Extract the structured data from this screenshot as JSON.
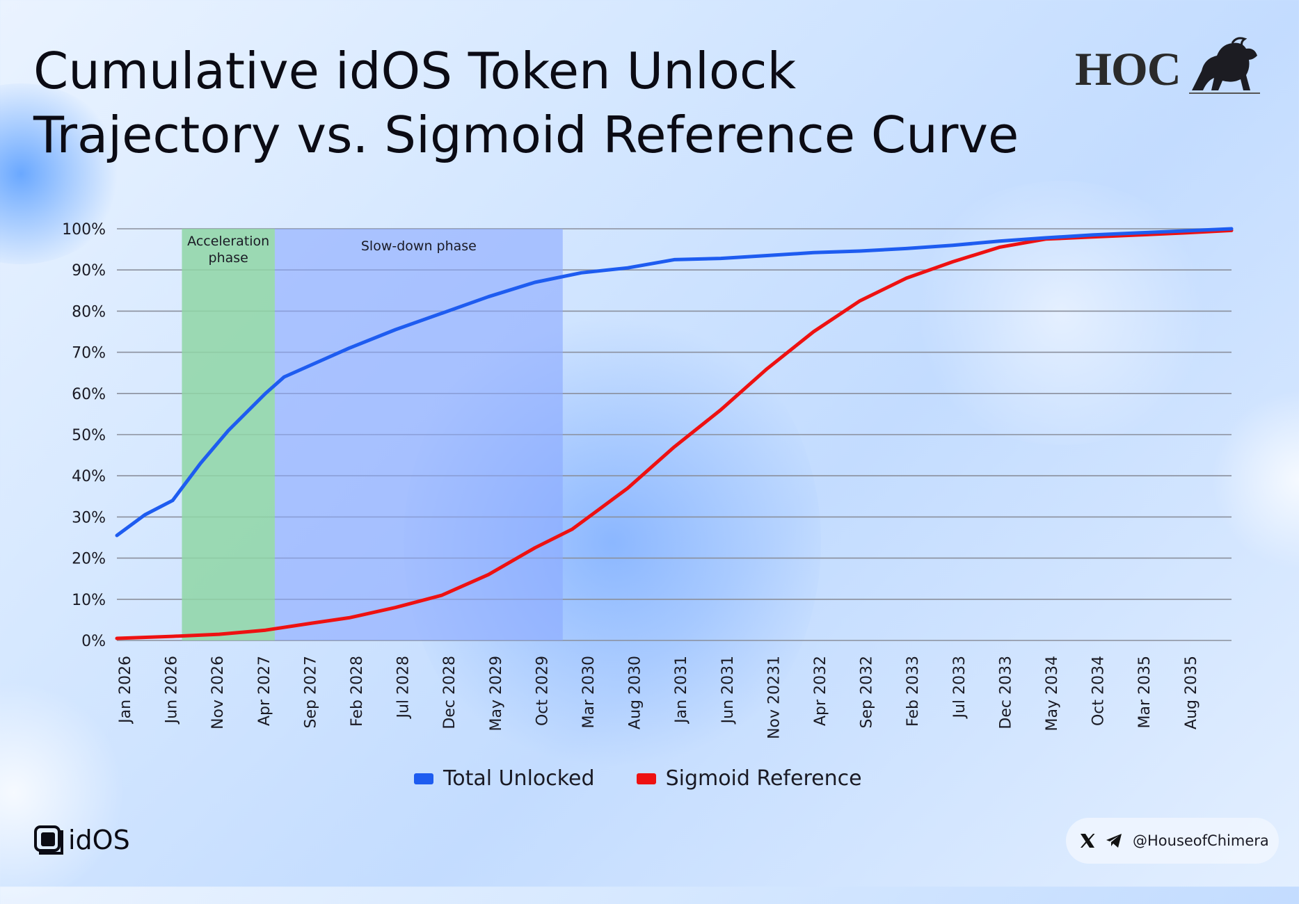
{
  "title_line1": "Cumulative idOS Token Unlock",
  "title_line2": "Trajectory vs. Sigmoid Reference Curve",
  "brand": {
    "hoc": "HOC",
    "idos": "idOS",
    "social_handle": "@HouseofChimera"
  },
  "colors": {
    "total": "#1e5cf0",
    "sigmoid": "#ee1111",
    "acceleration": "#8fd6a6",
    "slowdown": "#8aa8ff"
  },
  "icons": [
    "lion-icon",
    "x-icon",
    "telegram-icon",
    "idos-logo-icon"
  ],
  "chart_data": {
    "type": "line",
    "title": "Cumulative idOS Token Unlock Trajectory vs. Sigmoid Reference Curve",
    "xlabel": "",
    "ylabel": "",
    "ylim": [
      0,
      100
    ],
    "y_ticks": [
      "0%",
      "10%",
      "20%",
      "30%",
      "40%",
      "50%",
      "60%",
      "70%",
      "80%",
      "90%",
      "100%"
    ],
    "x_ticks": [
      "Jan 2026",
      "Jun 2026",
      "Nov 2026",
      "Apr 2027",
      "Sep 2027",
      "Feb 2028",
      "Jul 2028",
      "Dec 2028",
      "May 2029",
      "Oct 2029",
      "Mar 2030",
      "Aug 2030",
      "Jan 2031",
      "Jun 2031",
      "Nov 20231",
      "Apr 2032",
      "Sep 2032",
      "Feb 2033",
      "Jul 2033",
      "Dec 2033",
      "May 2034",
      "Oct 2034",
      "Mar 2035",
      "Aug 2035"
    ],
    "grid": true,
    "legend_position": "bottom-center",
    "phases": [
      {
        "label": "Acceleration phase",
        "start": "2026-08",
        "end": "2027-06"
      },
      {
        "label": "Slow-down phase",
        "start": "2027-06",
        "end": "2030-01"
      }
    ],
    "series": [
      {
        "name": "Total Unlocked",
        "points": [
          [
            "2026-01",
            25.5
          ],
          [
            "2026-04",
            30.5
          ],
          [
            "2026-07",
            34
          ],
          [
            "2026-10",
            43
          ],
          [
            "2027-01",
            51
          ],
          [
            "2027-05",
            60
          ],
          [
            "2027-07",
            64
          ],
          [
            "2027-10",
            67
          ],
          [
            "2028-02",
            71
          ],
          [
            "2028-07",
            75.5
          ],
          [
            "2028-12",
            79.5
          ],
          [
            "2029-05",
            83.5
          ],
          [
            "2029-10",
            87
          ],
          [
            "2030-03",
            89.3
          ],
          [
            "2030-08",
            90.5
          ],
          [
            "2031-01",
            92.5
          ],
          [
            "2031-06",
            92.8
          ],
          [
            "2031-11",
            93.5
          ],
          [
            "2032-04",
            94.2
          ],
          [
            "2032-09",
            94.6
          ],
          [
            "2033-02",
            95.2
          ],
          [
            "2033-07",
            96
          ],
          [
            "2033-12",
            97
          ],
          [
            "2034-05",
            97.8
          ],
          [
            "2034-10",
            98.5
          ],
          [
            "2035-03",
            99
          ],
          [
            "2035-08",
            99.5
          ],
          [
            "2036-01",
            100
          ]
        ]
      },
      {
        "name": "Sigmoid Reference",
        "points": [
          [
            "2026-01",
            0.5
          ],
          [
            "2026-07",
            1
          ],
          [
            "2026-12",
            1.5
          ],
          [
            "2027-05",
            2.5
          ],
          [
            "2027-10",
            4.2
          ],
          [
            "2028-02",
            5.5
          ],
          [
            "2028-07",
            8
          ],
          [
            "2028-12",
            11
          ],
          [
            "2029-05",
            16
          ],
          [
            "2029-10",
            22.5
          ],
          [
            "2030-02",
            27
          ],
          [
            "2030-05",
            32
          ],
          [
            "2030-08",
            37
          ],
          [
            "2031-01",
            47
          ],
          [
            "2031-06",
            56
          ],
          [
            "2031-11",
            66
          ],
          [
            "2032-04",
            75
          ],
          [
            "2032-09",
            82.5
          ],
          [
            "2033-02",
            88
          ],
          [
            "2033-07",
            92
          ],
          [
            "2033-12",
            95.5
          ],
          [
            "2034-05",
            97.5
          ],
          [
            "2034-10",
            98
          ],
          [
            "2035-03",
            98.5
          ],
          [
            "2035-08",
            99
          ],
          [
            "2036-01",
            99.6
          ]
        ]
      }
    ]
  }
}
